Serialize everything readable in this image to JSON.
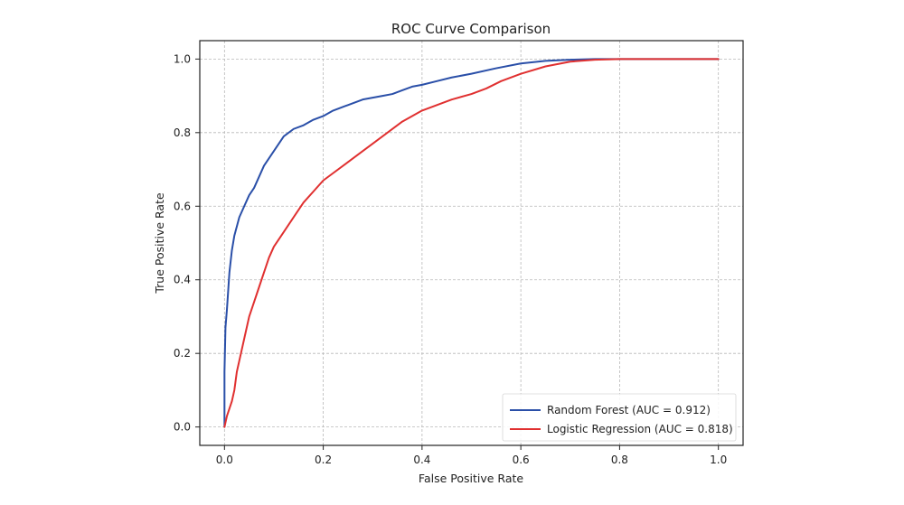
{
  "chart_data": {
    "type": "line",
    "title": "ROC Curve Comparison",
    "xlabel": "False Positive Rate",
    "ylabel": "True Positive Rate",
    "xlim": [
      -0.05,
      1.05
    ],
    "ylim": [
      -0.05,
      1.05
    ],
    "xticks": [
      "0.0",
      "0.2",
      "0.4",
      "0.6",
      "0.8",
      "1.0"
    ],
    "yticks": [
      "0.0",
      "0.2",
      "0.4",
      "0.6",
      "0.8",
      "1.0"
    ],
    "grid": true,
    "legend_position": "lower-right",
    "series": [
      {
        "name": "Random Forest (AUC = 0.912)",
        "color": "#2a4fa8",
        "x": [
          0.0,
          0.0,
          0.002,
          0.005,
          0.008,
          0.01,
          0.015,
          0.02,
          0.03,
          0.04,
          0.05,
          0.06,
          0.07,
          0.08,
          0.09,
          0.1,
          0.12,
          0.14,
          0.16,
          0.18,
          0.2,
          0.22,
          0.25,
          0.28,
          0.3,
          0.32,
          0.34,
          0.36,
          0.38,
          0.4,
          0.43,
          0.46,
          0.5,
          0.55,
          0.6,
          0.65,
          0.7,
          0.75,
          0.8,
          0.9,
          1.0
        ],
        "y": [
          0.0,
          0.15,
          0.27,
          0.32,
          0.38,
          0.42,
          0.48,
          0.52,
          0.57,
          0.6,
          0.63,
          0.65,
          0.68,
          0.71,
          0.73,
          0.75,
          0.79,
          0.81,
          0.82,
          0.835,
          0.845,
          0.86,
          0.875,
          0.89,
          0.895,
          0.9,
          0.905,
          0.915,
          0.925,
          0.93,
          0.94,
          0.95,
          0.96,
          0.975,
          0.988,
          0.995,
          0.998,
          1.0,
          1.0,
          1.0,
          1.0
        ]
      },
      {
        "name": "Logistic Regression (AUC = 0.818)",
        "color": "#e03030",
        "x": [
          0.0,
          0.005,
          0.01,
          0.015,
          0.02,
          0.025,
          0.03,
          0.04,
          0.05,
          0.06,
          0.07,
          0.08,
          0.09,
          0.1,
          0.12,
          0.14,
          0.16,
          0.18,
          0.2,
          0.22,
          0.25,
          0.28,
          0.3,
          0.33,
          0.36,
          0.4,
          0.43,
          0.46,
          0.5,
          0.53,
          0.56,
          0.6,
          0.65,
          0.7,
          0.75,
          0.8,
          0.9,
          1.0
        ],
        "y": [
          0.0,
          0.03,
          0.05,
          0.07,
          0.1,
          0.15,
          0.18,
          0.24,
          0.3,
          0.34,
          0.38,
          0.42,
          0.46,
          0.49,
          0.53,
          0.57,
          0.61,
          0.64,
          0.67,
          0.69,
          0.72,
          0.75,
          0.77,
          0.8,
          0.83,
          0.86,
          0.875,
          0.89,
          0.905,
          0.92,
          0.94,
          0.96,
          0.98,
          0.993,
          0.998,
          1.0,
          1.0,
          1.0
        ]
      }
    ]
  }
}
